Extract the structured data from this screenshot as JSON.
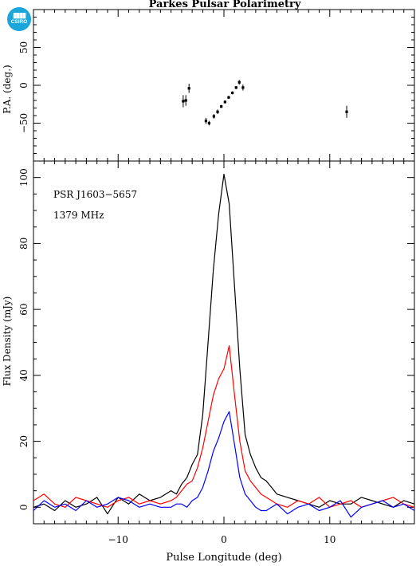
{
  "header": {
    "title": "Parkes Pulsar Polarimetry",
    "logo_text": "CSIRO"
  },
  "chart_data": [
    {
      "panel": "position-angle",
      "type": "scatter",
      "ylabel": "P.A. (deg.)",
      "xlim": [
        -18,
        18
      ],
      "ylim": [
        -100,
        100
      ],
      "yticks": [
        -50,
        0,
        50
      ],
      "points": [
        {
          "x": -3.85,
          "y": -21,
          "err": 8
        },
        {
          "x": -3.6,
          "y": -20,
          "err": 7
        },
        {
          "x": -3.3,
          "y": -4,
          "err": 6
        },
        {
          "x": -1.7,
          "y": -47,
          "err": 4
        },
        {
          "x": -1.4,
          "y": -50,
          "err": 3
        },
        {
          "x": -0.95,
          "y": -41,
          "err": 3
        },
        {
          "x": -0.6,
          "y": -35,
          "err": 3
        },
        {
          "x": -0.25,
          "y": -28,
          "err": 2
        },
        {
          "x": 0.1,
          "y": -22,
          "err": 2
        },
        {
          "x": 0.45,
          "y": -16,
          "err": 2
        },
        {
          "x": 0.8,
          "y": -10,
          "err": 2
        },
        {
          "x": 1.15,
          "y": -3,
          "err": 2
        },
        {
          "x": 1.45,
          "y": 4,
          "err": 3
        },
        {
          "x": 1.8,
          "y": -3,
          "err": 4
        },
        {
          "x": 11.6,
          "y": -35,
          "err": 8
        }
      ]
    },
    {
      "panel": "profile",
      "type": "line",
      "xlabel": "Pulse Longitude (deg)",
      "ylabel": "Flux Density (mJy)",
      "xlim": [
        -18,
        18
      ],
      "ylim": [
        -5,
        105
      ],
      "xticks": [
        -10,
        0,
        10
      ],
      "yticks": [
        0,
        20,
        40,
        60,
        80,
        100
      ],
      "annotations": [
        "PSR J1603−5657",
        "1379 MHz"
      ],
      "x": [
        -18,
        -17,
        -16,
        -15,
        -14,
        -13,
        -12,
        -11,
        -10,
        -9,
        -8,
        -7,
        -6,
        -5,
        -4.5,
        -4,
        -3.5,
        -3,
        -2.5,
        -2,
        -1.5,
        -1,
        -0.5,
        0,
        0.5,
        1,
        1.5,
        2,
        2.5,
        3,
        3.5,
        4,
        4.5,
        5,
        6,
        7,
        8,
        9,
        10,
        11,
        12,
        13,
        14,
        15,
        16,
        17,
        18
      ],
      "series": [
        {
          "color": "#000000",
          "values": [
            0,
            1,
            -1,
            2,
            0,
            1,
            3,
            -2,
            3,
            1,
            4,
            2,
            3,
            5,
            4,
            7,
            9,
            13,
            16,
            28,
            50,
            72,
            89,
            101,
            92,
            67,
            42,
            22,
            16,
            12,
            9,
            8,
            6,
            4,
            3,
            2,
            1,
            0,
            2,
            1,
            1,
            3,
            2,
            1,
            0,
            2,
            1
          ]
        },
        {
          "color": "#ff0000",
          "values": [
            2,
            4,
            1,
            0,
            3,
            2,
            1,
            0,
            2,
            3,
            1,
            2,
            1,
            2,
            3,
            5,
            7,
            8,
            12,
            18,
            26,
            34,
            39,
            42,
            49,
            34,
            20,
            11,
            8,
            6,
            4,
            3,
            2,
            1,
            0,
            2,
            1,
            3,
            0,
            1,
            2,
            0,
            1,
            2,
            3,
            1,
            0
          ]
        },
        {
          "color": "#0000ff",
          "values": [
            -1,
            2,
            0,
            1,
            -1,
            2,
            0,
            1,
            3,
            2,
            0,
            1,
            0,
            0,
            1,
            1,
            0,
            2,
            3,
            6,
            11,
            17,
            21,
            26,
            29,
            19,
            9,
            4,
            2,
            0,
            -1,
            -1,
            0,
            1,
            -2,
            0,
            1,
            -1,
            0,
            2,
            -3,
            0,
            1,
            2,
            0,
            1,
            -1
          ]
        }
      ]
    }
  ]
}
